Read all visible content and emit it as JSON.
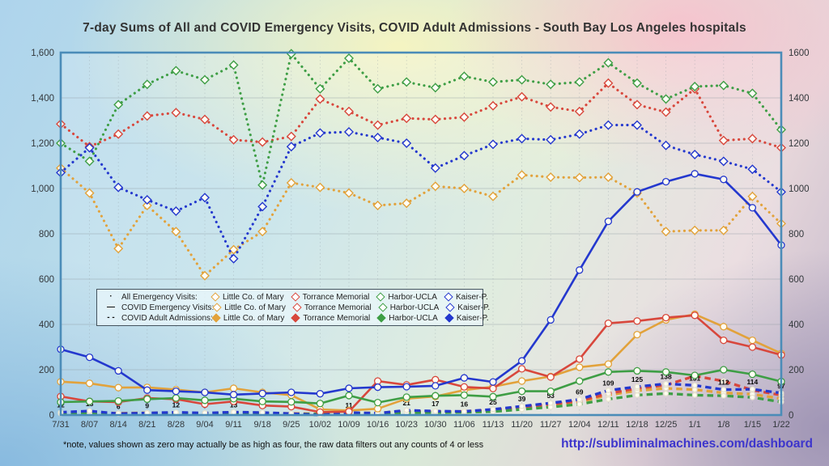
{
  "title": "7-day Sums of All and COVID Emergency Visits, COVID Adult Admissions - South Bay Los Angeles hospitals",
  "footnote": "*note, values shown as zero may actually be as high as four, the raw data filters out any counts of 4 or less",
  "link": {
    "text": "http://subliminalmachines.com/dashboard"
  },
  "legend": {
    "rows": [
      {
        "label": "All Emergency Visits:",
        "marker_glyph": "·",
        "style": "dotted"
      },
      {
        "label": "COVID Emergency Visits:",
        "marker_glyph": "—",
        "style": "solid"
      },
      {
        "label": "COVID Adult Admissions:",
        "marker_glyph": "- -",
        "style": "dashed"
      }
    ],
    "hospitals": [
      {
        "name": "Little Co. of Mary",
        "color": "#e2a23b"
      },
      {
        "name": "Torrance Memorial",
        "color": "#d8473c"
      },
      {
        "name": "Harbor-UCLA",
        "color": "#3e9e45"
      },
      {
        "name": "Kaiser-P.",
        "color": "#2438ce"
      }
    ]
  },
  "chart_data": {
    "type": "line",
    "title": "7-day Sums of All and COVID Emergency Visits, COVID Adult Admissions - South Bay Los Angeles hospitals",
    "xlabel": "",
    "ylabel": "",
    "ylim": [
      0,
      1600
    ],
    "ytick_step": 200,
    "grid": true,
    "legend_position": "inside-left-middle",
    "y_ticks_left": [
      "0",
      "200",
      "400",
      "600",
      "800",
      "1,000",
      "1,200",
      "1,400",
      "1,600"
    ],
    "y_ticks_right": [
      "0",
      "200",
      "400",
      "600",
      "800",
      "1000",
      "1200",
      "1400",
      "1600"
    ],
    "categories": [
      "7/31",
      "8/07",
      "8/14",
      "8/21",
      "8/28",
      "9/04",
      "9/11",
      "9/18",
      "9/25",
      "10/02",
      "10/09",
      "10/16",
      "10/23",
      "10/30",
      "11/06",
      "11/13",
      "11/20",
      "11/27",
      "12/04",
      "12/11",
      "12/18",
      "12/25",
      "1/1",
      "1/8",
      "1/15",
      "1/22"
    ],
    "series": [
      {
        "name": "All Emergency Visits - Little Co. of Mary",
        "group": "All Emergency Visits",
        "hospital": "Little Co. of Mary",
        "color": "#e2a23b",
        "style": "dotted",
        "marker": "diamond",
        "values": [
          1090,
          980,
          735,
          925,
          810,
          615,
          730,
          810,
          1025,
          1005,
          980,
          925,
          935,
          1010,
          1000,
          965,
          1060,
          1050,
          1048,
          1050,
          980,
          810,
          815,
          815,
          965,
          845
        ]
      },
      {
        "name": "All Emergency Visits - Torrance Memorial",
        "group": "All Emergency Visits",
        "hospital": "Torrance Memorial",
        "color": "#d8473c",
        "style": "dotted",
        "marker": "diamond",
        "values": [
          1285,
          1185,
          1240,
          1320,
          1335,
          1305,
          1215,
          1205,
          1230,
          1395,
          1340,
          1280,
          1310,
          1305,
          1315,
          1365,
          1405,
          1360,
          1340,
          1465,
          1370,
          1337,
          1440,
          1212,
          1220,
          1180
        ]
      },
      {
        "name": "All Emergency Visits - Harbor-UCLA",
        "group": "All Emergency Visits",
        "hospital": "Harbor-UCLA",
        "color": "#3e9e45",
        "style": "dotted",
        "marker": "diamond",
        "values": [
          1200,
          1120,
          1370,
          1460,
          1520,
          1480,
          1545,
          1015,
          1595,
          1440,
          1575,
          1440,
          1470,
          1445,
          1495,
          1470,
          1480,
          1460,
          1470,
          1555,
          1465,
          1395,
          1450,
          1455,
          1420,
          1260
        ]
      },
      {
        "name": "All Emergency Visits - Kaiser-P.",
        "group": "All Emergency Visits",
        "hospital": "Kaiser-P.",
        "color": "#2438ce",
        "style": "dotted",
        "marker": "diamond",
        "values": [
          1070,
          1180,
          1005,
          950,
          900,
          960,
          690,
          920,
          1185,
          1245,
          1250,
          1225,
          1200,
          1090,
          1145,
          1195,
          1220,
          1215,
          1240,
          1280,
          1280,
          1190,
          1150,
          1120,
          1085,
          985
        ]
      },
      {
        "name": "COVID Adult Admissions - Little Co. of Mary",
        "group": "COVID Adult Admissions",
        "hospital": "Little Co. of Mary",
        "color": "#e2a23b",
        "style": "dashed",
        "marker": "circle-small",
        "values": [
          10,
          13,
          8,
          10,
          9,
          8,
          10,
          9,
          7,
          5,
          9,
          10,
          16,
          14,
          15,
          20,
          30,
          42,
          58,
          88,
          108,
          118,
          112,
          98,
          92,
          72
        ]
      },
      {
        "name": "COVID Adult Admissions - Torrance Memorial",
        "group": "COVID Adult Admissions",
        "hospital": "Torrance Memorial",
        "color": "#d8473c",
        "style": "dashed",
        "marker": "circle-small",
        "values": [
          8,
          10,
          7,
          8,
          10,
          7,
          9,
          8,
          6,
          5,
          8,
          9,
          14,
          15,
          16,
          22,
          35,
          48,
          62,
          95,
          118,
          132,
          172,
          150,
          110,
          88
        ]
      },
      {
        "name": "COVID Adult Admissions - Harbor-UCLA",
        "group": "COVID Adult Admissions",
        "hospital": "Harbor-UCLA",
        "color": "#3e9e45",
        "style": "dashed",
        "marker": "circle-small",
        "values": [
          6,
          8,
          5,
          6,
          7,
          6,
          7,
          6,
          5,
          4,
          6,
          7,
          10,
          11,
          12,
          15,
          25,
          35,
          48,
          70,
          88,
          95,
          88,
          85,
          78,
          58
        ]
      },
      {
        "name": "COVID Adult Admissions - Kaiser-P.",
        "group": "COVID Adult Admissions",
        "hospital": "Kaiser-P.",
        "color": "#2438ce",
        "style": "dashed",
        "marker": "circle-small",
        "show_point_labels": true,
        "values": [
          12,
          18,
          6,
          9,
          12,
          9,
          13,
          11,
          6,
          0,
          11,
          8,
          21,
          17,
          16,
          25,
          39,
          53,
          69,
          109,
          125,
          138,
          131,
          112,
          114,
          97
        ]
      },
      {
        "name": "COVID Emergency Visits - Little Co. of Mary",
        "group": "COVID Emergency Visits",
        "hospital": "Little Co. of Mary",
        "color": "#e2a23b",
        "style": "solid",
        "marker": "circle",
        "values": [
          147,
          140,
          121,
          122,
          112,
          100,
          118,
          100,
          88,
          25,
          20,
          28,
          72,
          82,
          110,
          125,
          150,
          170,
          211,
          225,
          355,
          420,
          445,
          390,
          330,
          272
        ]
      },
      {
        "name": "COVID Emergency Visits - Torrance Memorial",
        "group": "COVID Emergency Visits",
        "hospital": "Torrance Memorial",
        "color": "#d8473c",
        "style": "solid",
        "marker": "circle",
        "values": [
          82,
          60,
          57,
          75,
          70,
          48,
          60,
          42,
          37,
          13,
          15,
          150,
          133,
          156,
          124,
          117,
          204,
          168,
          247,
          405,
          415,
          430,
          440,
          330,
          300,
          265
        ]
      },
      {
        "name": "COVID Emergency Visits - Harbor-UCLA",
        "group": "COVID Emergency Visits",
        "hospital": "Harbor-UCLA",
        "color": "#3e9e45",
        "style": "solid",
        "marker": "circle",
        "values": [
          57,
          60,
          62,
          70,
          75,
          65,
          72,
          60,
          58,
          51,
          86,
          55,
          79,
          85,
          88,
          81,
          105,
          105,
          150,
          190,
          195,
          190,
          175,
          200,
          180,
          148
        ]
      },
      {
        "name": "COVID Emergency Visits - Kaiser-P.",
        "group": "COVID Emergency Visits",
        "hospital": "Kaiser-P.",
        "color": "#2438ce",
        "style": "solid",
        "marker": "circle",
        "values": [
          290,
          255,
          195,
          110,
          105,
          100,
          90,
          95,
          100,
          94,
          118,
          123,
          125,
          129,
          164,
          146,
          239,
          420,
          640,
          855,
          985,
          1030,
          1065,
          1040,
          915,
          750
        ]
      }
    ]
  }
}
